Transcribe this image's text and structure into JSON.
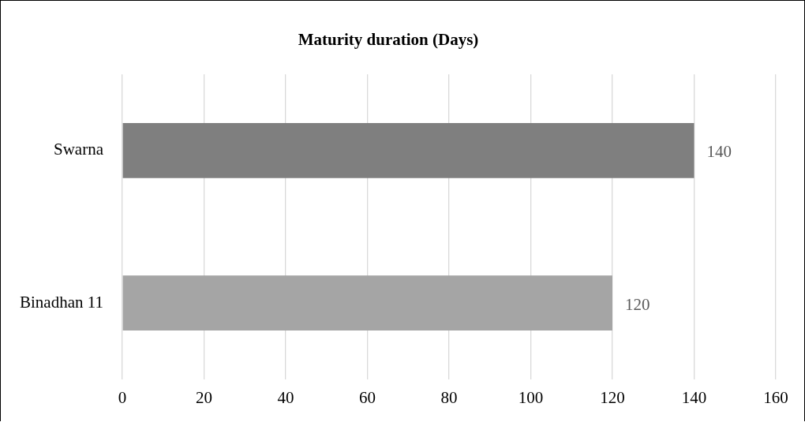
{
  "chart_data": {
    "type": "bar",
    "orientation": "horizontal",
    "title": "Maturity duration (Days)",
    "categories": [
      "Swarna",
      "Binadhan 11"
    ],
    "values": [
      140,
      120
    ],
    "colors": [
      "#7f7f7f",
      "#a5a5a5"
    ],
    "xlim": [
      0,
      160
    ],
    "xticks": [
      0,
      20,
      40,
      60,
      80,
      100,
      120,
      140,
      160
    ],
    "grid": "x",
    "legend": false,
    "data_labels": true
  }
}
